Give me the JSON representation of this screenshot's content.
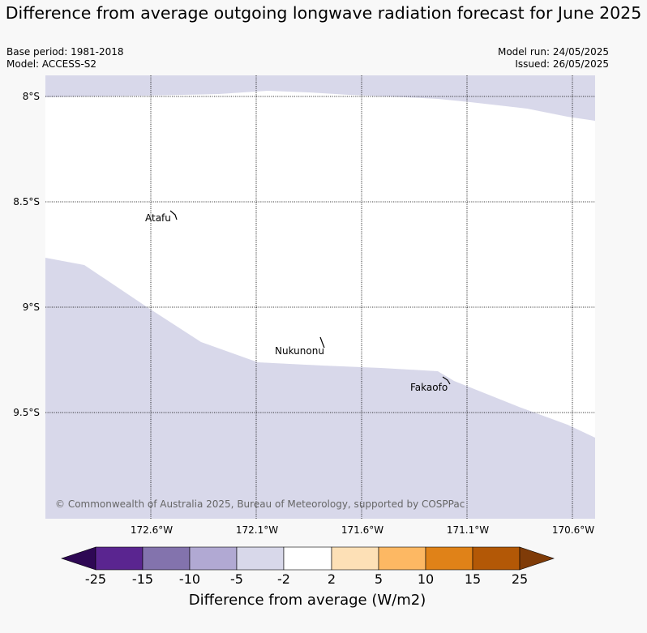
{
  "title": "Difference from average outgoing longwave radiation forecast for June 2025",
  "base_period": "Base period: 1981-2018",
  "model": "Model: ACCESS-S2",
  "model_run": "Model run: 24/05/2025",
  "issued": "Issued: 26/05/2025",
  "copyright": "© Commonwealth of Australia 2025, Bureau of Meteorology, supported by COSPPac",
  "map": {
    "lon_ticks": [
      "172.6°W",
      "172.1°W",
      "171.6°W",
      "171.1°W",
      "170.6°W"
    ],
    "lat_ticks": [
      "8°S",
      "8.5°S",
      "9°S",
      "9.5°S"
    ],
    "places": [
      "Atafu",
      "Nukunonu",
      "Fakaofo"
    ],
    "field_class": "-5 to -2",
    "field_color": "#d8d8ea"
  },
  "colorbar": {
    "label": "Difference from average (W/m2)",
    "ticks": [
      "-25",
      "-15",
      "-10",
      "-5",
      "-2",
      "2",
      "5",
      "10",
      "15",
      "25"
    ],
    "colors": {
      "under": "#2e0854",
      "classes": [
        "#5a2590",
        "#8373ad",
        "#b1a9d3",
        "#d8d8ea",
        "#ffffff",
        "#fde0b6",
        "#fdb863",
        "#e08218",
        "#b35806"
      ],
      "over": "#7f3b08"
    }
  }
}
